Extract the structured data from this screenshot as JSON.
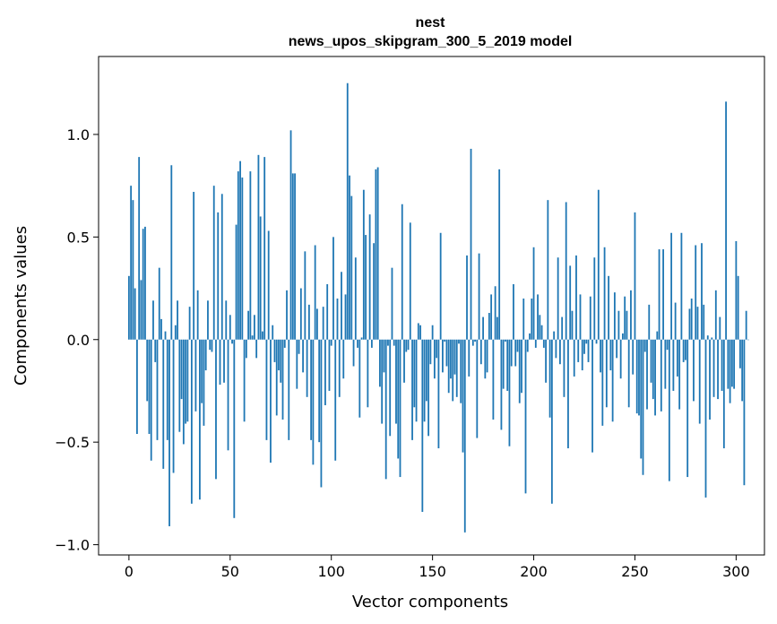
{
  "chart_data": {
    "type": "bar",
    "title": "nest",
    "subtitle": "news_upos_skipgram_300_5_2019 model",
    "xlabel": "Vector components",
    "ylabel": "Components values",
    "xlim": [
      -15,
      314
    ],
    "ylim": [
      -1.05,
      1.38
    ],
    "xticks": [
      0,
      50,
      100,
      150,
      200,
      250,
      300
    ],
    "yticks": [
      -1.0,
      -0.5,
      0.0,
      0.5,
      1.0
    ],
    "ytick_labels": [
      "−1.0",
      "−0.5",
      "0.0",
      "0.5",
      "1.0"
    ],
    "color": "#1f77b4",
    "values": [
      0.31,
      0.75,
      0.68,
      0.25,
      -0.46,
      0.89,
      0.29,
      0.54,
      0.55,
      -0.3,
      -0.46,
      -0.59,
      0.19,
      -0.11,
      -0.49,
      0.35,
      0.1,
      -0.63,
      0.04,
      -0.49,
      -0.91,
      0.85,
      -0.65,
      0.07,
      0.19,
      -0.45,
      -0.29,
      -0.51,
      -0.41,
      -0.4,
      0.16,
      -0.8,
      0.72,
      -0.35,
      0.24,
      -0.78,
      -0.31,
      -0.42,
      -0.15,
      0.19,
      -0.05,
      -0.06,
      0.75,
      -0.68,
      0.62,
      -0.22,
      0.71,
      -0.21,
      0.19,
      -0.54,
      0.12,
      -0.02,
      -0.87,
      0.56,
      0.82,
      0.87,
      0.79,
      -0.4,
      -0.09,
      0.14,
      0.82,
      0.02,
      0.12,
      -0.09,
      0.9,
      0.6,
      0.04,
      0.89,
      -0.49,
      0.53,
      -0.6,
      0.07,
      -0.11,
      -0.37,
      -0.15,
      -0.21,
      -0.39,
      -0.04,
      0.24,
      -0.49,
      1.02,
      0.81,
      0.81,
      -0.24,
      -0.07,
      0.25,
      -0.16,
      0.43,
      -0.28,
      0.17,
      -0.49,
      -0.61,
      0.46,
      0.15,
      -0.5,
      -0.72,
      0.16,
      -0.32,
      0.27,
      -0.25,
      -0.03,
      0.5,
      -0.59,
      0.2,
      -0.28,
      0.33,
      -0.19,
      0.22,
      1.25,
      0.8,
      0.7,
      -0.13,
      0.4,
      -0.04,
      -0.38,
      0.01,
      0.73,
      0.51,
      -0.33,
      0.61,
      -0.04,
      0.47,
      0.83,
      0.84,
      -0.23,
      -0.41,
      -0.16,
      -0.68,
      -0.03,
      -0.47,
      0.35,
      -0.03,
      -0.41,
      -0.58,
      -0.67,
      0.66,
      -0.21,
      -0.06,
      -0.05,
      0.57,
      -0.49,
      -0.33,
      -0.4,
      0.08,
      0.07,
      -0.84,
      -0.4,
      -0.3,
      -0.47,
      -0.12,
      0.07,
      -0.19,
      -0.09,
      -0.53,
      0.52,
      -0.16,
      -0.01,
      -0.13,
      -0.26,
      -0.19,
      -0.3,
      -0.17,
      -0.28,
      -0.02,
      -0.31,
      -0.55,
      -0.94,
      0.41,
      -0.18,
      0.93,
      -0.03,
      -0.01,
      -0.48,
      0.42,
      -0.12,
      0.11,
      -0.19,
      -0.16,
      0.13,
      0.22,
      -0.39,
      0.26,
      0.11,
      0.83,
      -0.44,
      -0.24,
      -0.01,
      -0.25,
      -0.52,
      -0.13,
      0.27,
      -0.13,
      -0.06,
      -0.31,
      -0.26,
      0.2,
      -0.75,
      -0.06,
      0.03,
      0.2,
      0.45,
      -0.04,
      0.22,
      0.12,
      0.07,
      -0.04,
      -0.21,
      0.68,
      -0.38,
      -0.8,
      0.04,
      -0.09,
      0.4,
      -0.12,
      0.11,
      -0.28,
      0.67,
      -0.53,
      0.36,
      0.14,
      -0.18,
      0.41,
      -0.11,
      0.22,
      -0.15,
      -0.07,
      -0.02,
      -0.11,
      0.21,
      -0.55,
      0.4,
      -0.02,
      0.73,
      -0.16,
      -0.42,
      0.45,
      -0.33,
      0.31,
      -0.15,
      -0.4,
      0.23,
      -0.09,
      0.14,
      -0.19,
      0.03,
      0.21,
      0.14,
      -0.33,
      0.24,
      -0.17,
      0.62,
      -0.36,
      -0.37,
      -0.58,
      -0.66,
      -0.06,
      -0.34,
      0.17,
      -0.21,
      -0.29,
      -0.37,
      0.04,
      0.44,
      -0.35,
      0.44,
      -0.24,
      -0.05,
      -0.69,
      0.52,
      -0.25,
      0.18,
      -0.18,
      -0.34,
      0.52,
      -0.11,
      -0.1,
      -0.67,
      0.15,
      0.2,
      -0.3,
      0.46,
      0.16,
      -0.41,
      0.47,
      0.17,
      -0.77,
      0.02,
      -0.39,
      0.01,
      -0.28,
      0.24,
      -0.29,
      0.11,
      -0.25,
      -0.53,
      1.16,
      -0.24,
      -0.31,
      -0.23,
      -0.24,
      0.48,
      0.31,
      -0.14,
      -0.3,
      -0.71,
      0.14,
      0.0
    ]
  }
}
